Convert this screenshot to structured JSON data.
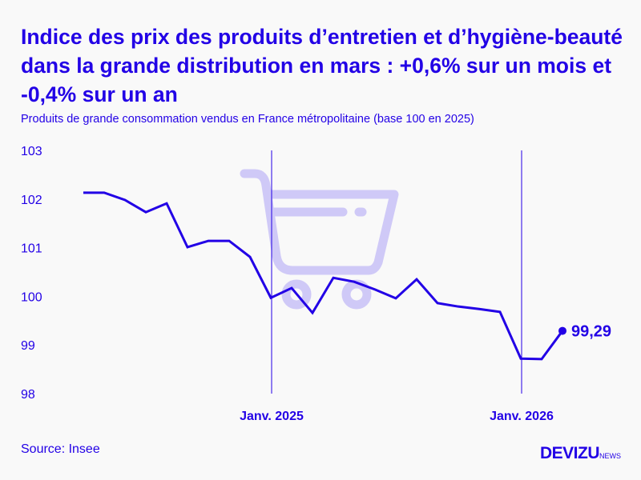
{
  "title": "Indice des prix des produits d’entretien et d’hygiène-beauté dans la grande distribution en mars : +0,6% sur un mois et -0,4% sur un an",
  "subtitle": "Produits de grande consommation vendus en France métropolitaine (base 100 en 2025)",
  "source": "Source: Insee",
  "logo": {
    "main": "DEVIZU",
    "suffix": "NEWS"
  },
  "colors": {
    "line": "#2200e6",
    "cart_icon": "#cfc9f7",
    "background": "#f9f9f9"
  },
  "icons": [
    "shopping-cart-icon"
  ],
  "chart_data": {
    "type": "line",
    "title": "",
    "xlabel": "",
    "ylabel": "",
    "ylim": [
      98,
      103
    ],
    "yticks": [
      "103",
      "102",
      "101",
      "100",
      "99",
      "98"
    ],
    "xticks": [
      {
        "label": "Janv. 2025",
        "date": "2025-01"
      },
      {
        "label": "Janv. 2026",
        "date": "2026-01"
      }
    ],
    "grid": false,
    "x": [
      "2024-04",
      "2024-05",
      "2024-06",
      "2024-07",
      "2024-08",
      "2024-09",
      "2024-10",
      "2024-11",
      "2024-12",
      "2025-01",
      "2025-02",
      "2025-03",
      "2025-04",
      "2025-05",
      "2025-06",
      "2025-07",
      "2025-08",
      "2025-09",
      "2025-10",
      "2025-11",
      "2025-12",
      "2026-01",
      "2026-02",
      "2026-03"
    ],
    "values": [
      102.13,
      102.13,
      101.98,
      101.73,
      101.91,
      101.01,
      101.14,
      101.14,
      100.81,
      99.97,
      100.17,
      99.66,
      100.38,
      100.3,
      100.14,
      99.96,
      100.35,
      99.86,
      99.79,
      99.74,
      99.68,
      98.72,
      98.71,
      99.29
    ],
    "end_label": "99,29"
  }
}
